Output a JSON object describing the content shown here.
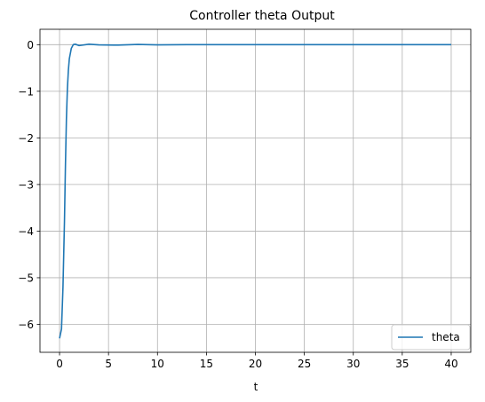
{
  "chart_data": {
    "type": "line",
    "title": "Controller theta Output",
    "xlabel": "t",
    "ylabel": "",
    "xlim": [
      -2,
      42
    ],
    "ylim": [
      -6.6,
      0.33
    ],
    "xticks": [
      0,
      5,
      10,
      15,
      20,
      25,
      30,
      35,
      40
    ],
    "yticks": [
      -6,
      -5,
      -4,
      -3,
      -2,
      -1,
      0
    ],
    "xtick_labels": [
      "0",
      "5",
      "10",
      "15",
      "20",
      "25",
      "30",
      "35",
      "40"
    ],
    "ytick_labels": [
      "−6",
      "−5",
      "−4",
      "−3",
      "−2",
      "−1",
      "0"
    ],
    "grid": true,
    "legend_position": "lower-right",
    "series": [
      {
        "name": "theta",
        "color": "#1f77b4",
        "x": [
          0,
          0.2,
          0.35,
          0.5,
          0.6,
          0.7,
          0.8,
          0.9,
          1.0,
          1.2,
          1.4,
          1.6,
          2.0,
          3.0,
          4.0,
          6.0,
          8.0,
          10.0,
          13.0,
          20.0,
          30.0,
          40.0
        ],
        "y": [
          -6.3,
          -6.1,
          -5.2,
          -3.8,
          -2.6,
          -1.6,
          -0.95,
          -0.55,
          -0.3,
          -0.08,
          0.0,
          0.01,
          -0.02,
          0.01,
          -0.005,
          -0.01,
          0.005,
          -0.005,
          0.0,
          0.0,
          0.0,
          0.0
        ]
      }
    ]
  }
}
